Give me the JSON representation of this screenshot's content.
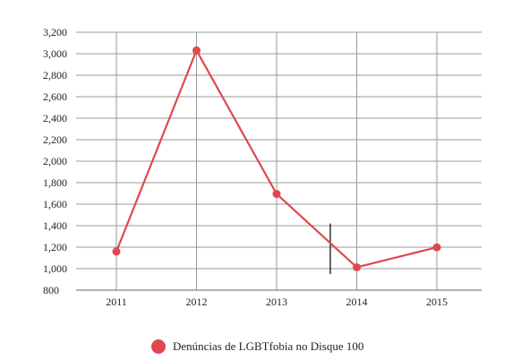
{
  "chart_data": {
    "type": "line",
    "x": [
      "2011",
      "2012",
      "2013",
      "2014",
      "2015"
    ],
    "series": [
      {
        "name": "Denúncias de LGBTfobia no Disque 100",
        "values": [
          1159,
          3031,
          1695,
          1013,
          1198
        ],
        "color": "#e0474f"
      }
    ],
    "y_ticks": [
      "800",
      "1,000",
      "1,200",
      "1,400",
      "1,600",
      "1,800",
      "2,000",
      "2,200",
      "2,400",
      "2,600",
      "2,800",
      "3,000",
      "3,200"
    ],
    "ylim": [
      800,
      3200
    ],
    "grid": true,
    "legend_position": "bottom-center",
    "annotation": {
      "type": "vertical-marker",
      "x": 2013.67,
      "y_range": [
        950,
        1420
      ],
      "color": "#000000"
    }
  }
}
